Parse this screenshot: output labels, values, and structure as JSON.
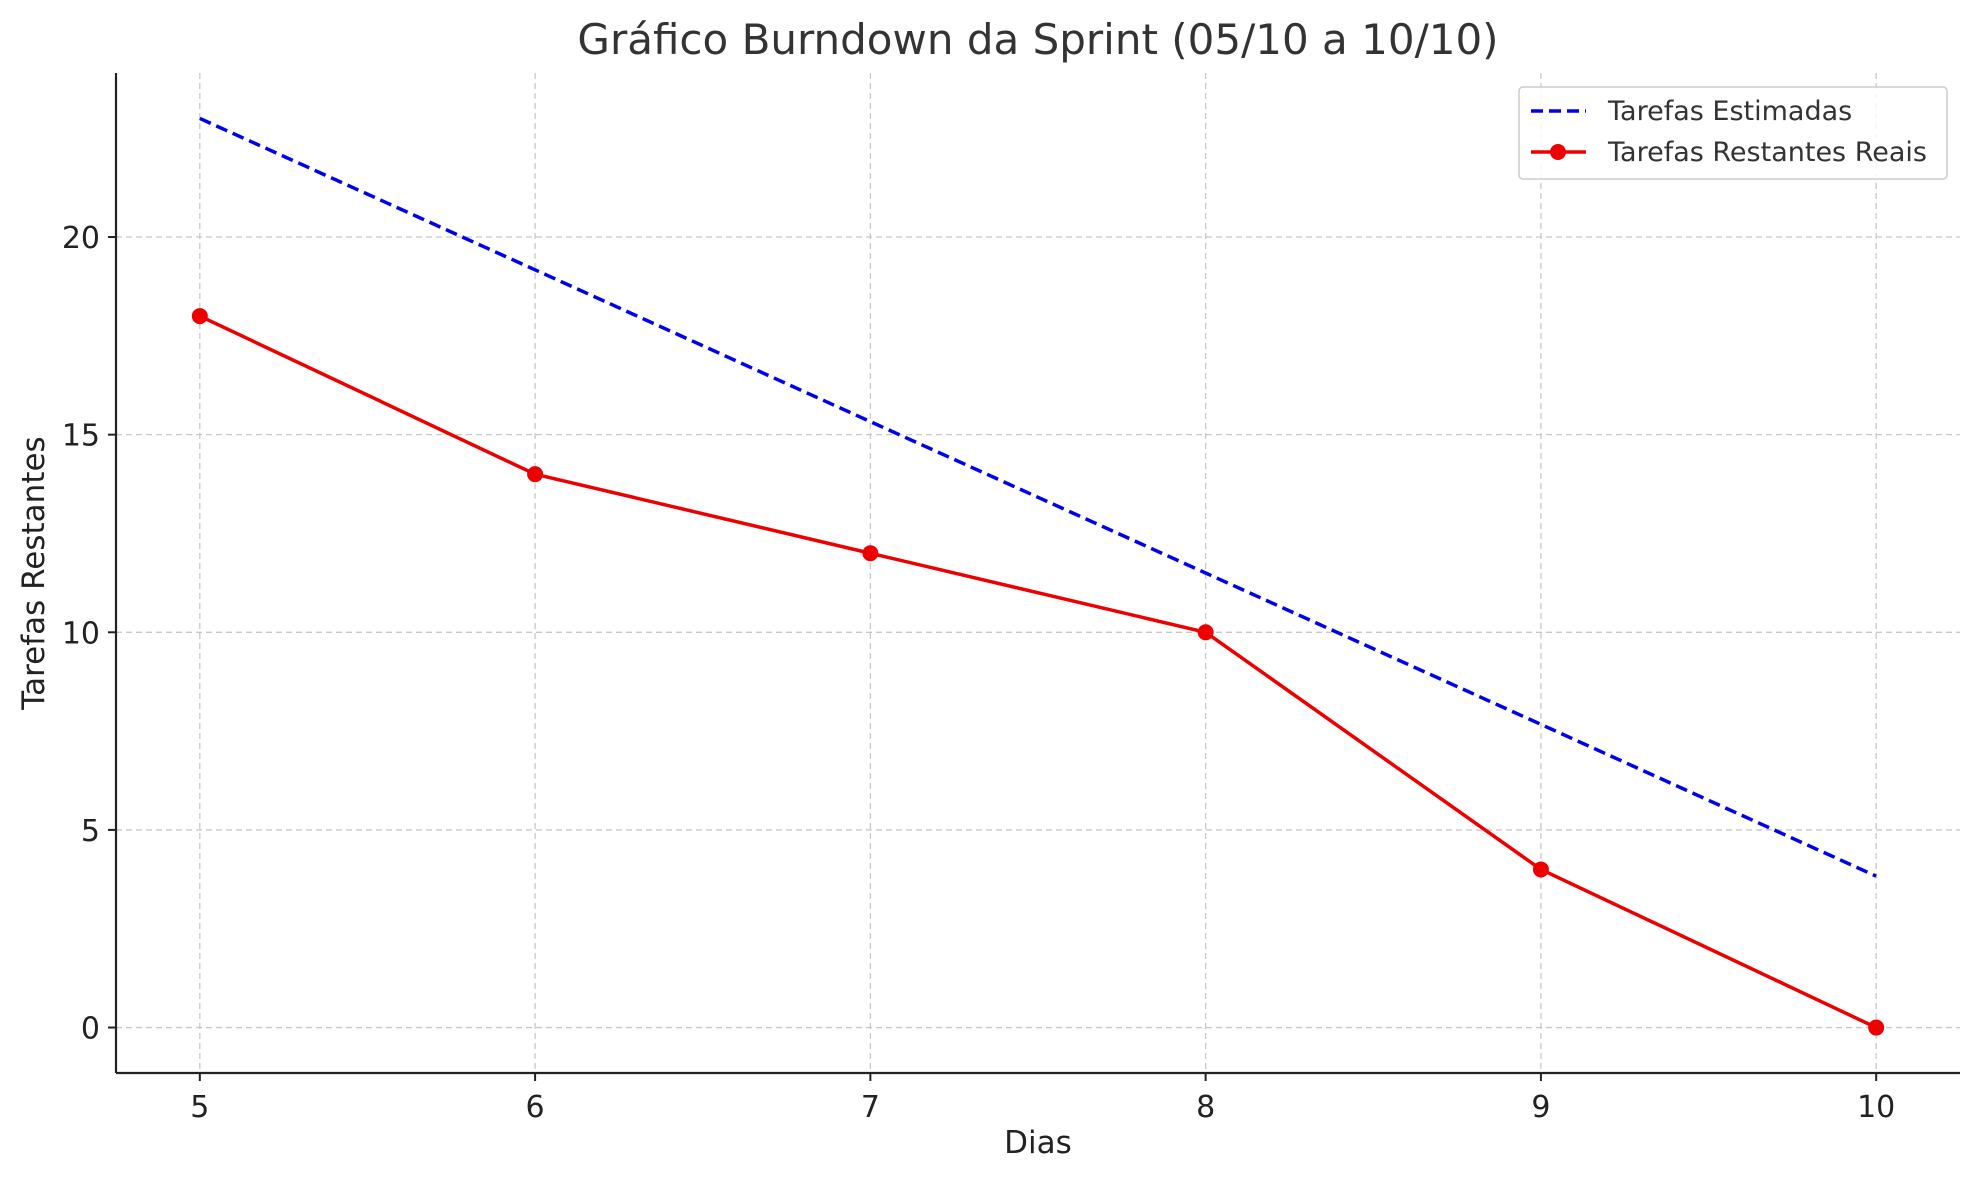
{
  "chart_data": {
    "type": "line",
    "title": "Gráfico Burndown da Sprint (05/10 a 10/10)",
    "xlabel": "Dias",
    "ylabel": "Tarefas Restantes",
    "x": [
      5,
      6,
      7,
      8,
      9,
      10
    ],
    "xlim": [
      4.75,
      10.25
    ],
    "ylim": [
      -1.15,
      24.15
    ],
    "xticks": [
      5,
      6,
      7,
      8,
      9,
      10
    ],
    "yticks": [
      0,
      5,
      10,
      15,
      20
    ],
    "grid": true,
    "legend_position": "top-right",
    "series": [
      {
        "name": "Tarefas Estimadas",
        "values": [
          23,
          19.17,
          15.33,
          11.5,
          7.67,
          3.83
        ],
        "color": "#0000ee",
        "style": "dashed",
        "markers": false
      },
      {
        "name": "Tarefas Restantes Reais",
        "values": [
          18,
          14,
          12,
          10,
          4,
          0
        ],
        "color": "#ee0000",
        "style": "solid",
        "markers": true
      }
    ]
  }
}
